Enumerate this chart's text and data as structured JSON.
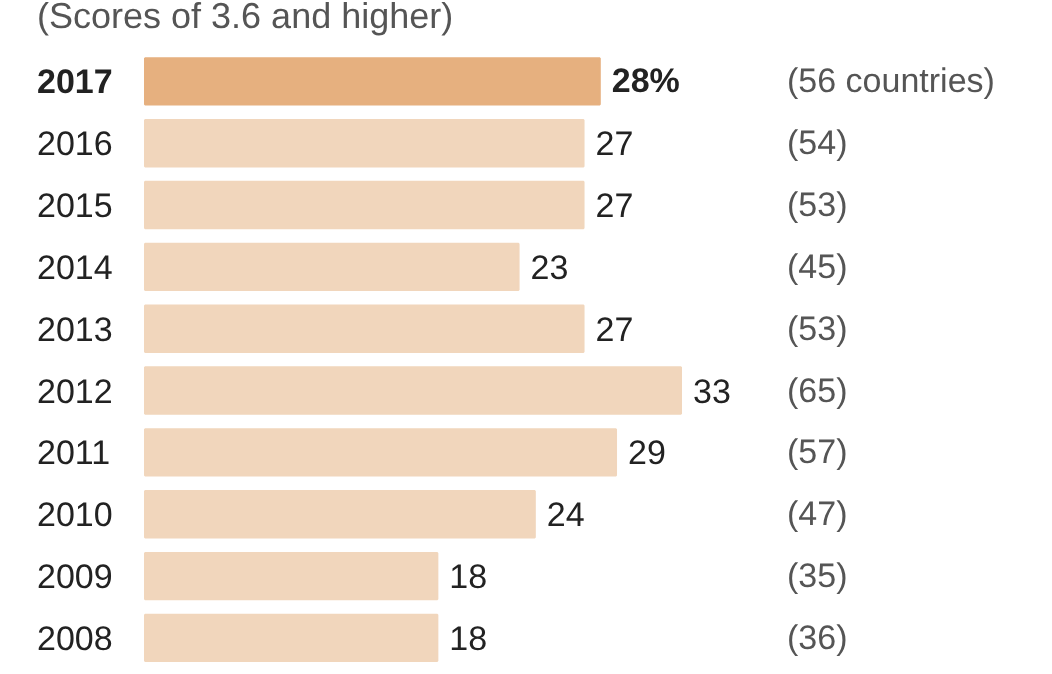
{
  "chart_data": {
    "type": "bar",
    "orientation": "horizontal",
    "subtitle": "(Scores of 3.6 and higher)",
    "categories": [
      "2017",
      "2016",
      "2015",
      "2014",
      "2013",
      "2012",
      "2011",
      "2010",
      "2009",
      "2008"
    ],
    "values": [
      28,
      27,
      27,
      23,
      27,
      33,
      29,
      24,
      18,
      18
    ],
    "value_labels": [
      "28%",
      "27",
      "27",
      "23",
      "27",
      "33",
      "29",
      "24",
      "18",
      "18"
    ],
    "colors": [
      "#e6b07f",
      "#f1d6bc",
      "#f1d6bc",
      "#f1d6bc",
      "#f1d6bc",
      "#f1d6bc",
      "#f1d6bc",
      "#f1d6bc",
      "#f1d6bc",
      "#f1d6bc"
    ],
    "annotations": [
      "(56 countries)",
      "(54)",
      "(53)",
      "(45)",
      "(53)",
      "(65)",
      "(57)",
      "(47)",
      "(35)",
      "(36)"
    ]
  }
}
